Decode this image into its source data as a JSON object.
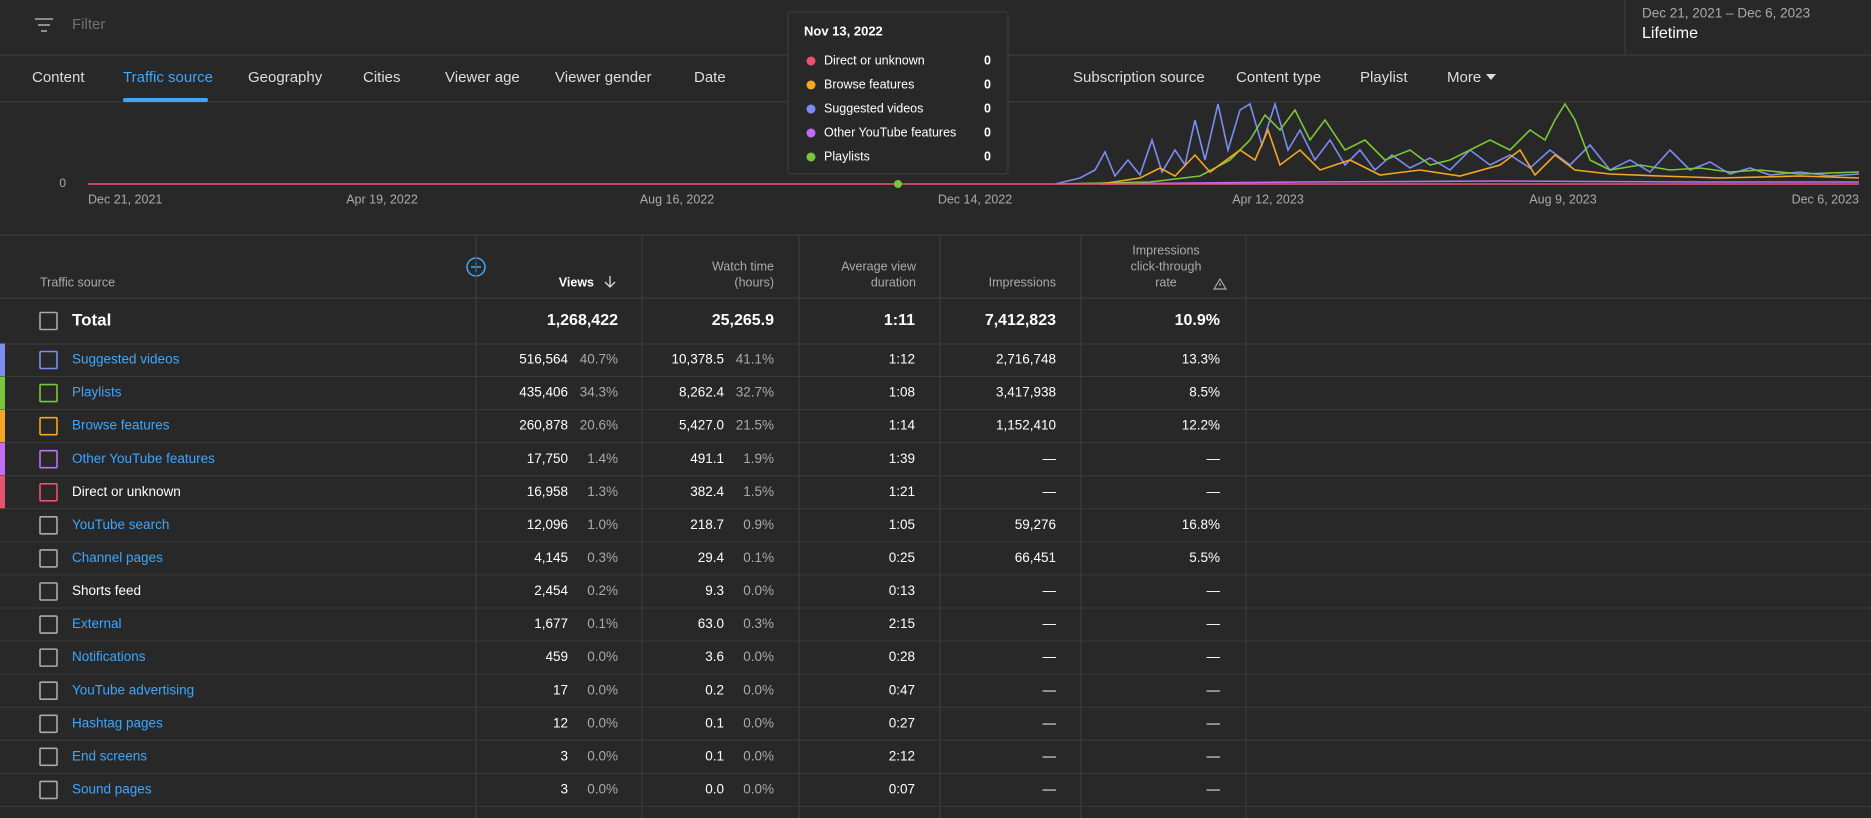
{
  "filter": "Filter",
  "date_range": {
    "range": "Dec 21, 2021 – Dec 6, 2023",
    "label": "Lifetime"
  },
  "tabs": [
    "Content",
    "Traffic source",
    "Geography",
    "Cities",
    "Viewer age",
    "Viewer gender",
    "Date",
    "Subscription source",
    "Content type",
    "Playlist",
    "More"
  ],
  "active_tab": 1,
  "chart": {
    "y_label": "0",
    "x_labels": [
      "Dec 21, 2021",
      "Apr 19, 2022",
      "Aug 16, 2022",
      "Dec 14, 2022",
      "Apr 12, 2023",
      "Aug 9, 2023",
      "Dec 6, 2023"
    ]
  },
  "tooltip": {
    "date": "Nov 13, 2022",
    "items": [
      {
        "name": "Direct or unknown",
        "color": "#e8536f",
        "value": "0"
      },
      {
        "name": "Browse features",
        "color": "#f5a623",
        "value": "0"
      },
      {
        "name": "Suggested videos",
        "color": "#7b8cf5",
        "value": "0"
      },
      {
        "name": "Other YouTube features",
        "color": "#c26df5",
        "value": "0"
      },
      {
        "name": "Playlists",
        "color": "#7cc53a",
        "value": "0"
      }
    ]
  },
  "table": {
    "headers": [
      [
        "Traffic source"
      ],
      [
        "Views"
      ],
      [
        "Watch time",
        "(hours)"
      ],
      [
        "Average view",
        "duration"
      ],
      [
        "Impressions"
      ],
      [
        "Impressions",
        "click-through",
        "rate"
      ]
    ],
    "total": {
      "source": "Total",
      "views": "1,268,422",
      "watch": "25,265.9",
      "avd": "1:11",
      "impressions": "7,412,823",
      "ctr": "10.9%"
    },
    "rows": [
      {
        "source": "Suggested videos",
        "link": true,
        "color": "#7b8cf5",
        "views": "516,564",
        "views_pct": "40.7%",
        "watch": "10,378.5",
        "watch_pct": "41.1%",
        "avd": "1:12",
        "impressions": "2,716,748",
        "ctr": "13.3%"
      },
      {
        "source": "Playlists",
        "link": true,
        "color": "#7cc53a",
        "views": "435,406",
        "views_pct": "34.3%",
        "watch": "8,262.4",
        "watch_pct": "32.7%",
        "avd": "1:08",
        "impressions": "3,417,938",
        "ctr": "8.5%"
      },
      {
        "source": "Browse features",
        "link": true,
        "color": "#f5a623",
        "views": "260,878",
        "views_pct": "20.6%",
        "watch": "5,427.0",
        "watch_pct": "21.5%",
        "avd": "1:14",
        "impressions": "1,152,410",
        "ctr": "12.2%"
      },
      {
        "source": "Other YouTube features",
        "link": true,
        "color": "#c26df5",
        "views": "17,750",
        "views_pct": "1.4%",
        "watch": "491.1",
        "watch_pct": "1.9%",
        "avd": "1:39",
        "impressions": "—",
        "ctr": "—"
      },
      {
        "source": "Direct or unknown",
        "link": false,
        "color": "#e8536f",
        "views": "16,958",
        "views_pct": "1.3%",
        "watch": "382.4",
        "watch_pct": "1.5%",
        "avd": "1:21",
        "impressions": "—",
        "ctr": "—"
      },
      {
        "source": "YouTube search",
        "link": true,
        "views": "12,096",
        "views_pct": "1.0%",
        "watch": "218.7",
        "watch_pct": "0.9%",
        "avd": "1:05",
        "impressions": "59,276",
        "ctr": "16.8%"
      },
      {
        "source": "Channel pages",
        "link": true,
        "views": "4,145",
        "views_pct": "0.3%",
        "watch": "29.4",
        "watch_pct": "0.1%",
        "avd": "0:25",
        "impressions": "66,451",
        "ctr": "5.5%"
      },
      {
        "source": "Shorts feed",
        "link": false,
        "views": "2,454",
        "views_pct": "0.2%",
        "watch": "9.3",
        "watch_pct": "0.0%",
        "avd": "0:13",
        "impressions": "—",
        "ctr": "—"
      },
      {
        "source": "External",
        "link": true,
        "views": "1,677",
        "views_pct": "0.1%",
        "watch": "63.0",
        "watch_pct": "0.3%",
        "avd": "2:15",
        "impressions": "—",
        "ctr": "—"
      },
      {
        "source": "Notifications",
        "link": true,
        "views": "459",
        "views_pct": "0.0%",
        "watch": "3.6",
        "watch_pct": "0.0%",
        "avd": "0:28",
        "impressions": "—",
        "ctr": "—"
      },
      {
        "source": "YouTube advertising",
        "link": true,
        "views": "17",
        "views_pct": "0.0%",
        "watch": "0.2",
        "watch_pct": "0.0%",
        "avd": "0:47",
        "impressions": "—",
        "ctr": "—"
      },
      {
        "source": "Hashtag pages",
        "link": true,
        "views": "12",
        "views_pct": "0.0%",
        "watch": "0.1",
        "watch_pct": "0.0%",
        "avd": "0:27",
        "impressions": "—",
        "ctr": "—"
      },
      {
        "source": "End screens",
        "link": true,
        "views": "3",
        "views_pct": "0.0%",
        "watch": "0.1",
        "watch_pct": "0.0%",
        "avd": "2:12",
        "impressions": "—",
        "ctr": "—"
      },
      {
        "source": "Sound pages",
        "link": true,
        "views": "3",
        "views_pct": "0.0%",
        "watch": "0.0",
        "watch_pct": "0.0%",
        "avd": "0:07",
        "impressions": "—",
        "ctr": "—"
      }
    ]
  }
}
